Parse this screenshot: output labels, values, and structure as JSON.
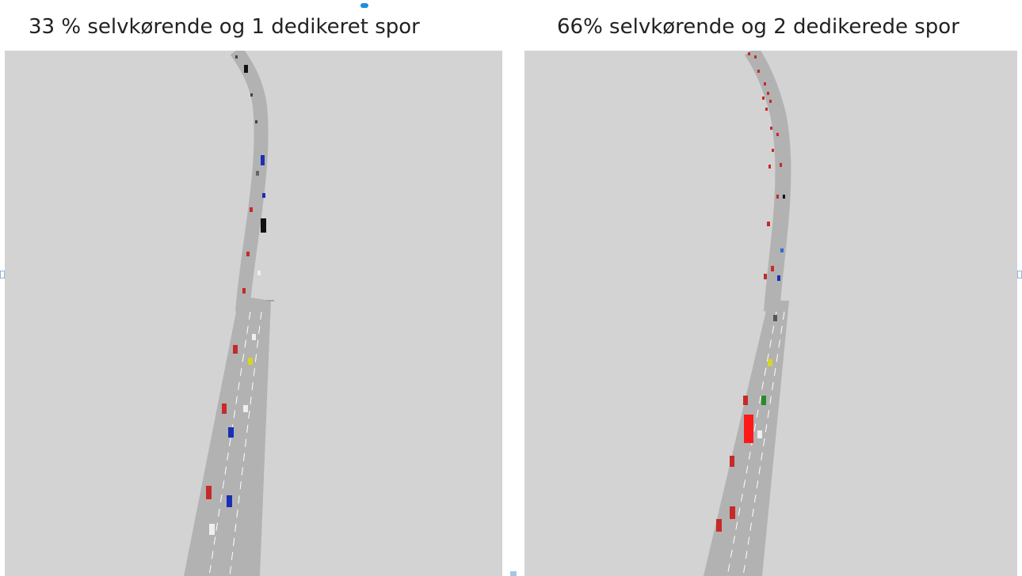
{
  "panels": {
    "left": {
      "title": "33 % selvkørende og 1 dedikeret spor"
    },
    "right": {
      "title": "66% selvkørende og 2 dedikerede spor"
    }
  },
  "colors": {
    "background": "#d3d3d3",
    "road": "#b2b2b2",
    "lane_marking": "#ffffff",
    "car_red": "#c62a2a",
    "car_blue": "#1b2fb5",
    "car_black": "#111111",
    "car_white": "#eeeeee",
    "car_yellow": "#d8d428",
    "car_green": "#2a8a2a",
    "truck_red": "#ff1a1a"
  }
}
